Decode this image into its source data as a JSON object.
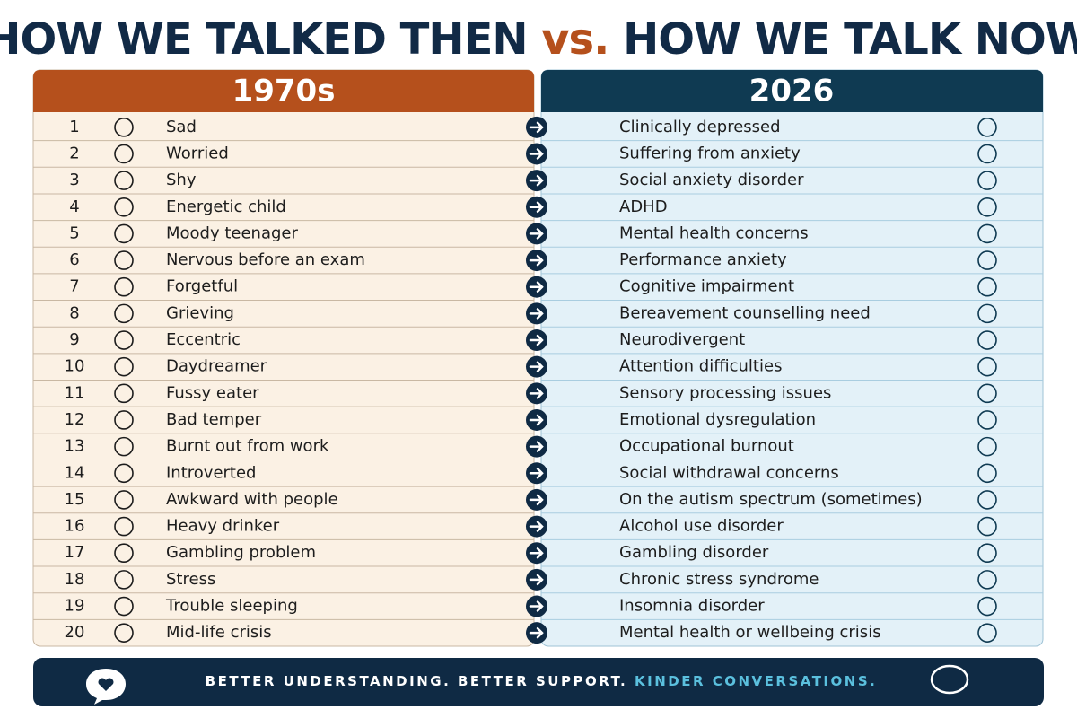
{
  "header": {
    "title_then": "HOW WE TALKED THEN",
    "title_vs": "vs.",
    "title_now": "HOW WE TALK NOW"
  },
  "table": {
    "columns": [
      "1970s",
      "2026"
    ],
    "rows": [
      [
        1,
        "Sad",
        "Clinically depressed"
      ],
      [
        2,
        "Worried",
        "Suffering from anxiety"
      ],
      [
        3,
        "Shy",
        "Social anxiety disorder"
      ],
      [
        4,
        "Energetic child",
        "ADHD"
      ],
      [
        5,
        "Moody teenager",
        "Mental health concerns"
      ],
      [
        6,
        "Nervous before an exam",
        "Performance anxiety"
      ],
      [
        7,
        "Forgetful",
        "Cognitive impairment"
      ],
      [
        8,
        "Grieving",
        "Bereavement counselling need"
      ],
      [
        9,
        "Eccentric",
        "Neurodivergent"
      ],
      [
        10,
        "Daydreamer",
        "Attention difficulties"
      ],
      [
        11,
        "Fussy eater",
        "Sensory processing issues"
      ],
      [
        12,
        "Bad temper",
        "Emotional dysregulation"
      ],
      [
        13,
        "Burnt out from work",
        "Occupational burnout"
      ],
      [
        14,
        "Introverted",
        "Social withdrawal concerns"
      ],
      [
        15,
        "Awkward with people",
        "On the autism spectrum (sometimes)"
      ],
      [
        16,
        "Heavy drinker",
        "Alcohol use disorder"
      ],
      [
        17,
        "Gambling problem",
        "Gambling disorder"
      ],
      [
        18,
        "Stress",
        "Chronic stress syndrome"
      ],
      [
        19,
        "Trouble sleeping",
        "Insomnia disorder"
      ],
      [
        20,
        "Mid-life crisis",
        "Mental health or wellbeing crisis"
      ]
    ]
  },
  "footer": {
    "text": "BETTER UNDERSTANDING. BETTER SUPPORT.",
    "highlight": "KINDER CONVERSATIONS."
  }
}
